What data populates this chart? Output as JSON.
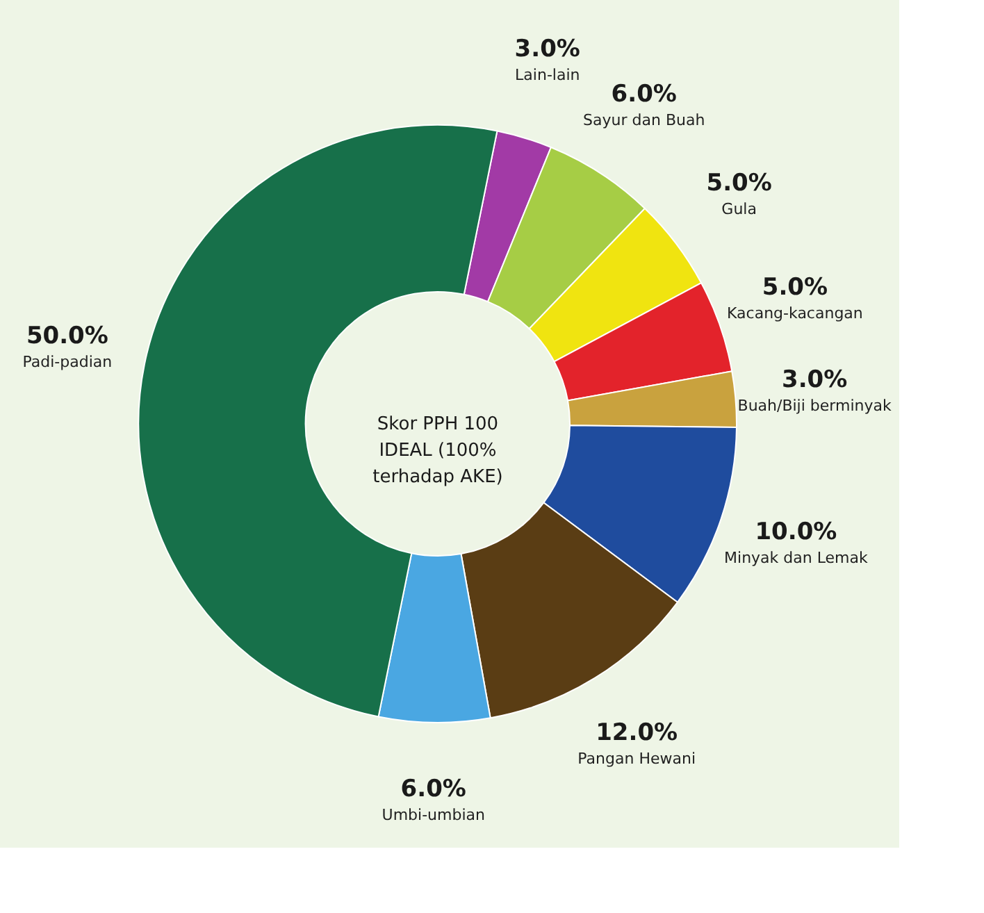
{
  "chart_data": {
    "type": "donut",
    "categories": [
      "Lain-lain",
      "Sayur dan Buah",
      "Gula",
      "Kacang-kacangan",
      "Buah/Biji berminyak",
      "Minyak dan Lemak",
      "Pangan Hewani",
      "Umbi-umbian",
      "Padi-padian"
    ],
    "values": [
      3,
      6,
      5,
      5,
      3,
      10,
      12,
      6,
      50
    ],
    "value_labels": [
      "3.0%",
      "6.0%",
      "5.0%",
      "5.0%",
      "3.0%",
      "10.0%",
      "12.0%",
      "6.0%",
      "50.0%"
    ],
    "colors": [
      "#a23aa6",
      "#a6cd45",
      "#f0e410",
      "#e3232b",
      "#c9a23e",
      "#1f4c9e",
      "#5a3d14",
      "#4aa7e2",
      "#17704a"
    ],
    "annotations": [
      "Skor PPH 100 IDEAL (100% terhadap AKE)"
    ],
    "legend": false
  }
}
